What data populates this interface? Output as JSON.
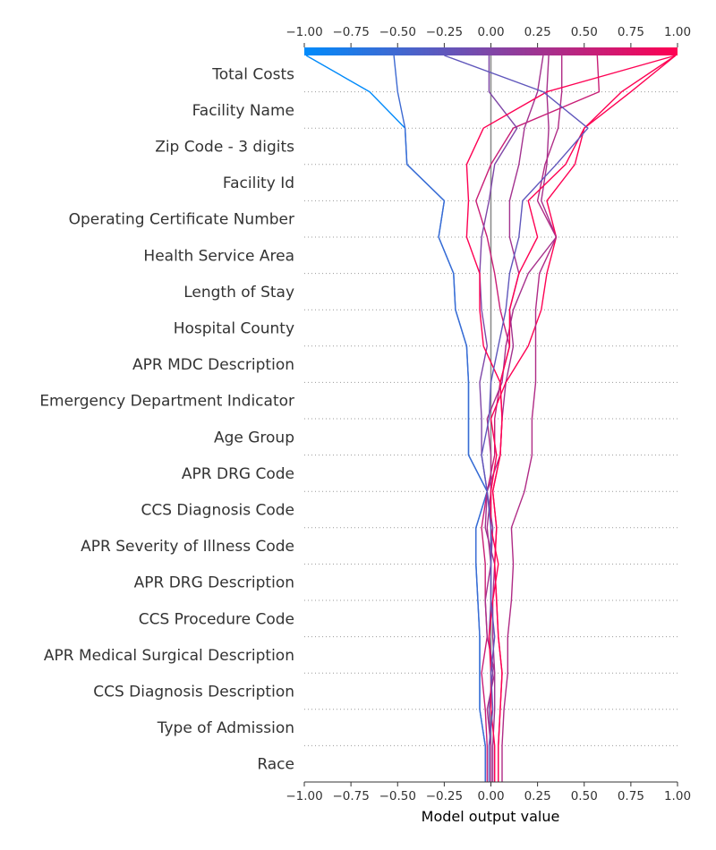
{
  "chart_data": {
    "type": "line",
    "subtype": "shap-decision-plot",
    "title": "",
    "xlabel": "Model output value",
    "ylabel": "",
    "xlim": [
      -1.0,
      1.0
    ],
    "x_ticks": [
      -1.0,
      -0.75,
      -0.5,
      -0.25,
      0.0,
      0.25,
      0.5,
      0.75,
      1.0
    ],
    "x_tick_labels": [
      "−1.00",
      "−0.75",
      "−0.50",
      "−0.25",
      "0.00",
      "0.25",
      "0.50",
      "0.75",
      "1.00"
    ],
    "base_value": 0.0,
    "grid": "dotted-horizontal",
    "colormap": {
      "low": "#008bfb",
      "high": "#ff0052"
    },
    "features": [
      "Total Costs",
      "Facility Name",
      "Zip Code - 3 digits",
      "Facility Id",
      "Operating Certificate Number",
      "Health Service Area",
      "Length of Stay",
      "Hospital County",
      "APR MDC Description",
      "Emergency Department Indicator",
      "Age Group",
      "APR DRG Code",
      "CCS Diagnosis Code",
      "APR Severity of Illness Code",
      "APR DRG Description",
      "CCS Procedure Code",
      "APR Medical Surgical Description",
      "CCS Diagnosis Description",
      "Type of Admission",
      "Race"
    ],
    "series_note": "points listed from the bottom boundary (Race start) up to the top boundary (final output)",
    "series": [
      {
        "values": [
          -0.03,
          -0.03,
          -0.06,
          -0.06,
          -0.06,
          -0.07,
          -0.08,
          -0.08,
          -0.02,
          -0.12,
          -0.12,
          -0.12,
          -0.13,
          -0.19,
          -0.2,
          -0.28,
          -0.25,
          -0.45,
          -0.46,
          -0.65,
          -0.99
        ]
      },
      {
        "values": [
          -0.03,
          -0.03,
          -0.06,
          -0.06,
          -0.06,
          -0.07,
          -0.08,
          -0.08,
          -0.02,
          -0.12,
          -0.12,
          -0.12,
          -0.13,
          -0.19,
          -0.2,
          -0.28,
          -0.25,
          -0.45,
          -0.46,
          -0.5,
          -0.52
        ]
      },
      {
        "values": [
          -0.02,
          -0.02,
          -0.03,
          -0.05,
          -0.02,
          -0.03,
          -0.03,
          -0.05,
          -0.02,
          0.02,
          0.02,
          0.05,
          0.1,
          0.05,
          0.02,
          -0.02,
          -0.08,
          0.0,
          0.12,
          0.58,
          0.57
        ]
      },
      {
        "values": [
          0.0,
          0.0,
          -0.01,
          0.01,
          -0.01,
          0.0,
          0.0,
          0.01,
          -0.02,
          -0.05,
          -0.05,
          -0.06,
          -0.02,
          -0.05,
          -0.06,
          -0.05,
          -0.01,
          0.02,
          0.14,
          -0.01,
          -0.01
        ]
      },
      {
        "values": [
          0.01,
          0.01,
          0.02,
          0.02,
          0.01,
          0.01,
          0.02,
          -0.03,
          -0.02,
          0.05,
          0.06,
          0.08,
          0.12,
          0.1,
          0.15,
          0.1,
          0.1,
          0.15,
          0.18,
          0.25,
          0.28
        ]
      },
      {
        "values": [
          0.0,
          0.0,
          -0.02,
          0.02,
          -0.02,
          -0.03,
          0.0,
          -0.02,
          0.0,
          0.0,
          -0.02,
          0.06,
          0.08,
          0.12,
          0.2,
          0.35,
          0.27,
          0.3,
          0.31,
          0.3,
          0.31
        ]
      },
      {
        "values": [
          0.02,
          0.02,
          0.0,
          0.0,
          -0.01,
          0.01,
          0.04,
          0.0,
          0.0,
          0.03,
          0.0,
          0.08,
          0.2,
          0.27,
          0.3,
          0.35,
          0.3,
          0.45,
          0.5,
          0.7,
          0.99
        ]
      },
      {
        "values": [
          0.06,
          0.06,
          0.07,
          0.09,
          0.09,
          0.11,
          0.12,
          0.11,
          0.18,
          0.22,
          0.22,
          0.24,
          0.24,
          0.24,
          0.26,
          0.35,
          0.25,
          0.29,
          0.36,
          0.38,
          0.38
        ]
      },
      {
        "values": [
          0.04,
          0.04,
          0.05,
          0.06,
          0.04,
          0.03,
          0.02,
          0.03,
          0.01,
          0.05,
          0.06,
          0.05,
          -0.04,
          -0.06,
          -0.06,
          -0.13,
          -0.12,
          -0.13,
          -0.04,
          0.3,
          0.99
        ]
      },
      {
        "values": [
          0.04,
          0.04,
          0.05,
          0.06,
          0.04,
          0.03,
          0.02,
          0.03,
          0.01,
          0.05,
          0.06,
          0.05,
          0.1,
          0.1,
          0.15,
          0.25,
          0.2,
          0.4,
          0.5,
          0.75,
          0.99
        ]
      },
      {
        "values": [
          -0.01,
          -0.01,
          0.01,
          0.0,
          0.02,
          0.0,
          0.0,
          0.0,
          -0.02,
          -0.05,
          -0.01,
          0.0,
          0.04,
          0.08,
          0.1,
          0.15,
          0.17,
          0.35,
          0.52,
          0.28,
          -0.25
        ]
      }
    ]
  }
}
